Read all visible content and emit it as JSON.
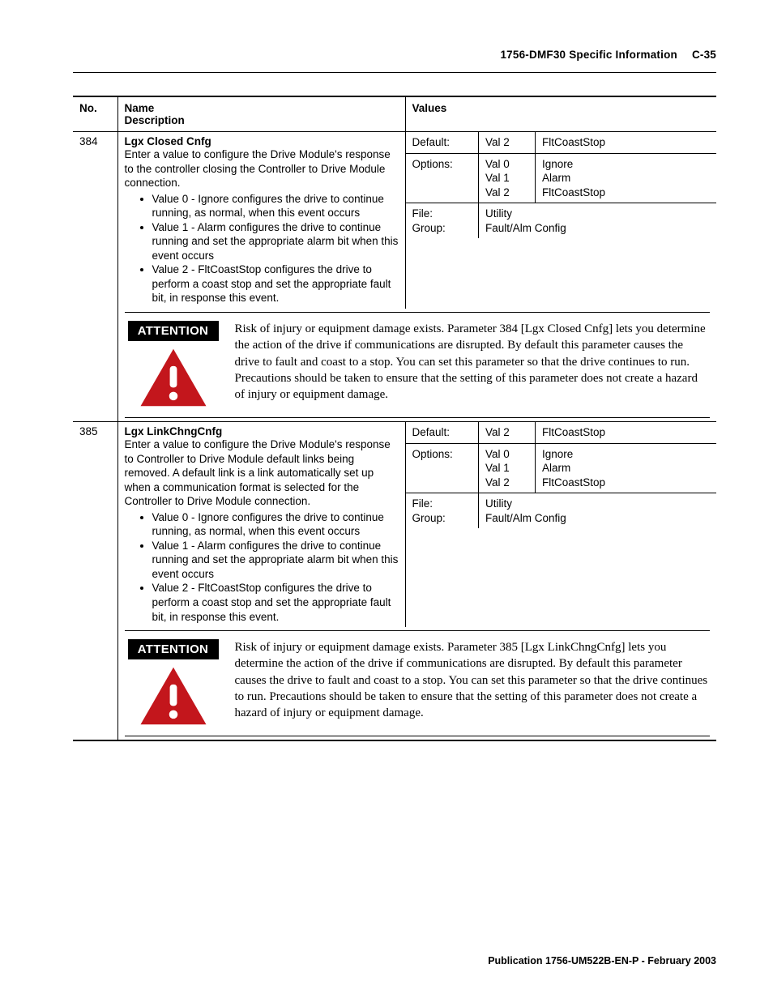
{
  "header": {
    "title": "1756-DMF30 Specific Information",
    "page_num": "C-35"
  },
  "columns": {
    "no": "No.",
    "name_line1": "Name",
    "name_line2": "Description",
    "values": "Values"
  },
  "attention_label": "ATTENTION",
  "attention_icon": {
    "fill": "#c3161c",
    "dot": "#ffffff",
    "bar": "#ffffff"
  },
  "value_labels": {
    "default": "Default:",
    "options": "Options:",
    "file": "File:",
    "group": "Group:"
  },
  "rows": [
    {
      "no": "384",
      "name": "Lgx Closed Cnfg",
      "desc_intro": "Enter a value to configure the Drive Module's response to the controller closing the Controller to Drive Module connection.",
      "bullets": [
        "Value 0 - Ignore configures the drive to continue running, as normal, when this event occurs",
        "Value 1 - Alarm configures the drive to continue running and set the appropriate alarm bit when this event occurs",
        "Value 2 - FltCoastStop configures the drive to perform a coast stop and set the appropriate fault bit, in response this event."
      ],
      "default_key": "Val 2",
      "default_val": "FltCoastStop",
      "options_keys": "Val 0\nVal 1\nVal 2",
      "options_vals": "Ignore\nAlarm\nFltCoastStop",
      "file": "Utility",
      "group": "Fault/Alm Config",
      "attention": "Risk of injury or equipment damage exists.  Parameter 384 [Lgx Closed Cnfg] lets you determine the action of the drive if communications are disrupted.  By default this parameter causes the drive to fault and coast to a stop.  You can set this parameter so that the drive continues to run.  Precautions  should be taken to ensure that the setting of this parameter does not create a hazard of injury or equipment damage."
    },
    {
      "no": "385",
      "name": "Lgx LinkChngCnfg",
      "desc_intro": "Enter a value to configure the Drive Module's response to Controller to Drive Module default links being removed.  A default link is a link automatically set up when a communication format is selected for the Controller to Drive Module connection.",
      "bullets": [
        "Value 0 - Ignore configures the drive to continue running, as normal, when this event occurs",
        "Value 1 - Alarm configures the drive to continue running and set the appropriate alarm bit when this event occurs",
        "Value 2 - FltCoastStop configures the drive to perform a coast stop and set the appropriate fault bit, in response this event."
      ],
      "default_key": "Val 2",
      "default_val": "FltCoastStop",
      "options_keys": "Val 0\nVal 1\nVal 2",
      "options_vals": "Ignore\nAlarm\nFltCoastStop",
      "file": "Utility",
      "group": "Fault/Alm Config",
      "attention": "Risk of injury or equipment damage exists.  Parameter 385 [Lgx LinkChngCnfg] lets you determine the action of the drive if communications are disrupted.  By default this parameter causes the drive to fault and coast to a stop.  You can set this parameter so that the drive continues to run.  Precautions  should be taken to ensure that the setting of this parameter does not create a hazard of injury or equipment damage."
    }
  ],
  "footer": "Publication 1756-UM522B-EN-P - February 2003"
}
